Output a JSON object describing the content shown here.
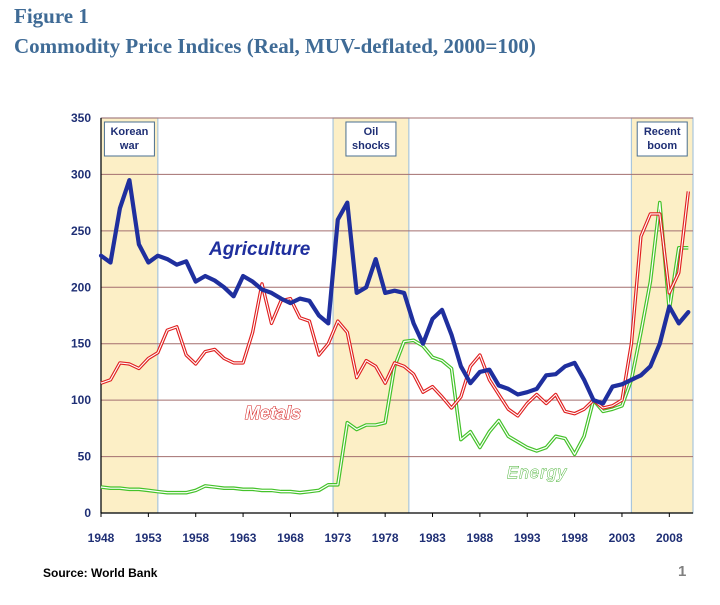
{
  "figure_label": "Figure 1",
  "title": "Commodity Price Indices (Real, MUV-deflated, 2000=100)",
  "source": "Source: World Bank",
  "page_number": "1",
  "chart_data": {
    "type": "line",
    "ylim": [
      0,
      350
    ],
    "xlim": [
      1948,
      2010.5
    ],
    "grid": true,
    "ytick_labels": [
      "0",
      "50",
      "100",
      "150",
      "200",
      "250",
      "300",
      "350"
    ],
    "xtick_labels": [
      "1948",
      "1953",
      "1958",
      "1963",
      "1968",
      "1973",
      "1978",
      "1983",
      "1988",
      "1993",
      "1998",
      "2003",
      "2008"
    ],
    "periods": [
      {
        "name": "Korean war",
        "label_lines": [
          "Korean",
          "war"
        ],
        "start": 1948,
        "end": 1954
      },
      {
        "name": "Oil shocks",
        "label_lines": [
          "Oil",
          "shocks"
        ],
        "start": 1972.5,
        "end": 1980.5
      },
      {
        "name": "Recent boom",
        "label_lines": [
          "Recent",
          "boom"
        ],
        "start": 2004,
        "end": 2010.5
      }
    ],
    "series": [
      {
        "name": "Agriculture",
        "color": "#1f2f9e",
        "x": [
          1948,
          1949,
          1950,
          1951,
          1952,
          1953,
          1954,
          1955,
          1956,
          1957,
          1958,
          1959,
          1960,
          1961,
          1962,
          1963,
          1964,
          1965,
          1966,
          1967,
          1968,
          1969,
          1970,
          1971,
          1972,
          1973,
          1974,
          1975,
          1976,
          1977,
          1978,
          1979,
          1980,
          1981,
          1982,
          1983,
          1984,
          1985,
          1986,
          1987,
          1988,
          1989,
          1990,
          1991,
          1992,
          1993,
          1994,
          1995,
          1996,
          1997,
          1998,
          1999,
          2000,
          2001,
          2002,
          2003,
          2004,
          2005,
          2006,
          2007,
          2008,
          2009,
          2010
        ],
        "values": [
          228,
          222,
          270,
          295,
          238,
          222,
          228,
          225,
          220,
          223,
          205,
          210,
          206,
          200,
          192,
          210,
          205,
          198,
          195,
          190,
          186,
          190,
          188,
          175,
          168,
          260,
          275,
          195,
          200,
          225,
          195,
          197,
          195,
          168,
          150,
          172,
          180,
          158,
          130,
          115,
          125,
          127,
          113,
          110,
          105,
          107,
          110,
          122,
          123,
          130,
          133,
          118,
          100,
          97,
          112,
          114,
          118,
          122,
          130,
          150,
          183,
          168,
          178
        ]
      },
      {
        "name": "Metals",
        "color": "#e02020",
        "x": [
          1948,
          1949,
          1950,
          1951,
          1952,
          1953,
          1954,
          1955,
          1956,
          1957,
          1958,
          1959,
          1960,
          1961,
          1962,
          1963,
          1964,
          1965,
          1966,
          1967,
          1968,
          1969,
          1970,
          1971,
          1972,
          1973,
          1974,
          1975,
          1976,
          1977,
          1978,
          1979,
          1980,
          1981,
          1982,
          1983,
          1984,
          1985,
          1986,
          1987,
          1988,
          1989,
          1990,
          1991,
          1992,
          1993,
          1994,
          1995,
          1996,
          1997,
          1998,
          1999,
          2000,
          2001,
          2002,
          2003,
          2004,
          2005,
          2006,
          2007,
          2008,
          2009,
          2010
        ],
        "values": [
          115,
          118,
          133,
          132,
          128,
          137,
          142,
          162,
          165,
          140,
          132,
          143,
          145,
          137,
          133,
          133,
          160,
          203,
          168,
          188,
          190,
          173,
          170,
          140,
          150,
          170,
          160,
          120,
          135,
          130,
          115,
          133,
          130,
          123,
          107,
          112,
          103,
          93,
          103,
          130,
          140,
          118,
          105,
          92,
          86,
          97,
          105,
          97,
          105,
          90,
          88,
          92,
          100,
          93,
          95,
          100,
          150,
          245,
          265,
          265,
          195,
          213,
          285
        ]
      },
      {
        "name": "Energy",
        "color": "#44c22a",
        "x": [
          1948,
          1949,
          1950,
          1951,
          1952,
          1953,
          1954,
          1955,
          1956,
          1957,
          1958,
          1959,
          1960,
          1961,
          1962,
          1963,
          1964,
          1965,
          1966,
          1967,
          1968,
          1969,
          1970,
          1971,
          1972,
          1973,
          1974,
          1975,
          1976,
          1977,
          1978,
          1979,
          1980,
          1981,
          1982,
          1983,
          1984,
          1985,
          1986,
          1987,
          1988,
          1989,
          1990,
          1991,
          1992,
          1993,
          1994,
          1995,
          1996,
          1997,
          1998,
          1999,
          2000,
          2001,
          2002,
          2003,
          2004,
          2005,
          2006,
          2007,
          2008,
          2009,
          2010
        ],
        "values": [
          23,
          22,
          22,
          21,
          21,
          20,
          19,
          18,
          18,
          18,
          20,
          24,
          23,
          22,
          22,
          21,
          21,
          20,
          20,
          19,
          19,
          18,
          19,
          20,
          25,
          25,
          80,
          74,
          78,
          78,
          80,
          130,
          152,
          153,
          148,
          138,
          135,
          128,
          65,
          72,
          58,
          72,
          82,
          68,
          63,
          58,
          55,
          58,
          68,
          66,
          52,
          68,
          100,
          90,
          92,
          95,
          118,
          160,
          205,
          275,
          180,
          235,
          235
        ]
      }
    ],
    "annotations": [
      {
        "text": "Agriculture",
        "series": "Agriculture"
      },
      {
        "text": "Metals",
        "series": "Metals"
      },
      {
        "text": "Energy",
        "series": "Energy"
      }
    ]
  }
}
